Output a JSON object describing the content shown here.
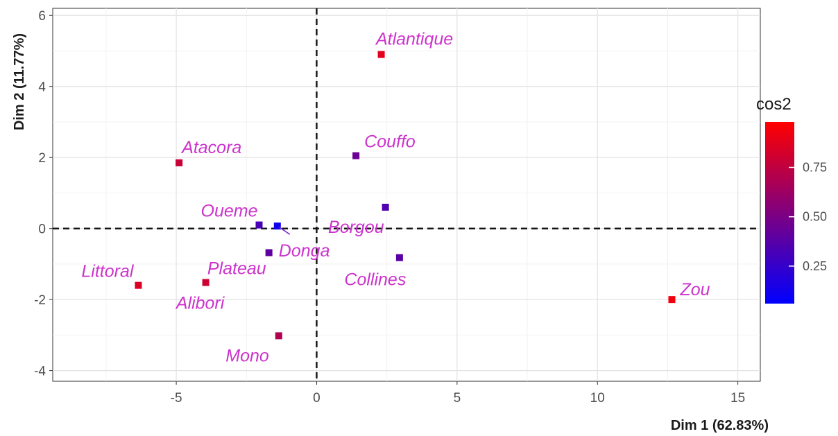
{
  "chart_data": {
    "type": "scatter",
    "xlabel": "Dim 1 (62.83%)",
    "ylabel": "Dim 2 (11.77%)",
    "xlim": [
      -9.4,
      15.8
    ],
    "ylim": [
      -4.3,
      6.2
    ],
    "xticks": [
      -5,
      0,
      5,
      10,
      15
    ],
    "yticks": [
      -4,
      -2,
      0,
      2,
      4,
      6
    ],
    "grid": true,
    "reference_lines": {
      "x": 0,
      "y": 0,
      "style": "dashed"
    },
    "label_color": "#cc33cc",
    "points": [
      {
        "label": "Atlantique",
        "x": 2.3,
        "y": 4.9,
        "cos2": 0.88
      },
      {
        "label": "Couffo",
        "x": 1.4,
        "y": 2.05,
        "cos2": 0.45
      },
      {
        "label": "Atacora",
        "x": -4.9,
        "y": 1.85,
        "cos2": 0.78
      },
      {
        "label": "Borgou",
        "x": 2.45,
        "y": 0.6,
        "cos2": 0.35
      },
      {
        "label": "Oueme",
        "x": -2.05,
        "y": 0.1,
        "cos2": 0.32
      },
      {
        "label": "Donga",
        "x": -1.4,
        "y": 0.07,
        "cos2": 0.12
      },
      {
        "label": "Plateau",
        "x": -1.7,
        "y": -0.68,
        "cos2": 0.4
      },
      {
        "label": "Collines",
        "x": 2.95,
        "y": -0.82,
        "cos2": 0.38
      },
      {
        "label": "Littoral",
        "x": -6.35,
        "y": -1.6,
        "cos2": 0.85
      },
      {
        "label": "Alibori",
        "x": -3.95,
        "y": -1.52,
        "cos2": 0.8
      },
      {
        "label": "Mono",
        "x": -1.35,
        "y": -3.02,
        "cos2": 0.7
      },
      {
        "label": "Zou",
        "x": 12.65,
        "y": -2.0,
        "cos2": 0.93
      }
    ],
    "legend": {
      "title": "cos2",
      "ticks": [
        0.25,
        0.5,
        0.75
      ],
      "tick_labels": [
        "0.25",
        "0.50",
        "0.75"
      ],
      "range": [
        0.06,
        0.98
      ],
      "colors": {
        "low": "#0000ff",
        "high": "#ff0000"
      },
      "placement": "right"
    }
  }
}
